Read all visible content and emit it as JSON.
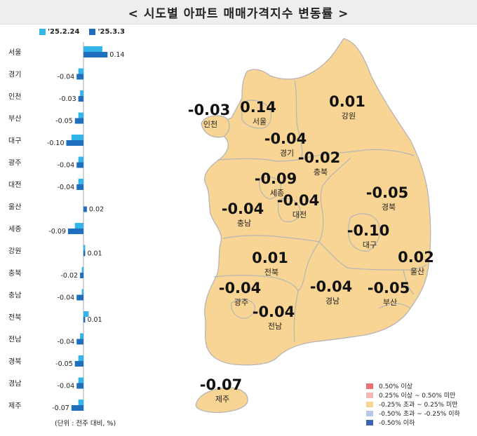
{
  "title": "< 시도별 아파트 매매가격지수 변동률 >",
  "unit_note": "(단위 : 전주 대비, %)",
  "colors": {
    "prev": "#33b5ea",
    "curr": "#1f6fbf",
    "land": "#f8d594",
    "land_stroke": "#b5b5b5"
  },
  "chart_data": {
    "type": "bar",
    "orientation": "horizontal",
    "series": [
      {
        "name": "'25.2.24",
        "values": [
          0.11,
          -0.03,
          -0.02,
          -0.03,
          -0.07,
          -0.03,
          -0.03,
          0.0,
          -0.05,
          0.01,
          -0.01,
          -0.01,
          0.03,
          -0.02,
          -0.03,
          -0.03,
          -0.03
        ]
      },
      {
        "name": "'25.3.3",
        "values": [
          0.14,
          -0.04,
          -0.03,
          -0.05,
          -0.1,
          -0.04,
          -0.04,
          0.02,
          -0.09,
          0.01,
          -0.02,
          -0.04,
          0.01,
          -0.04,
          -0.05,
          -0.04,
          -0.07
        ]
      }
    ],
    "categories": [
      "서울",
      "경기",
      "인천",
      "부산",
      "대구",
      "광주",
      "대전",
      "울산",
      "세종",
      "강원",
      "충북",
      "충남",
      "전북",
      "전남",
      "경북",
      "경남",
      "제주"
    ],
    "data_labels": [
      "0.14",
      "-0.04",
      "-0.03",
      "-0.05",
      "-0.10",
      "-0.04",
      "-0.04",
      "0.02",
      "-0.09",
      "0.01",
      "-0.02",
      "-0.04",
      "0.01",
      "-0.04",
      "-0.05",
      "-0.04",
      "-0.07"
    ]
  },
  "map": {
    "regions": [
      {
        "name": "인천",
        "value": "-0.03"
      },
      {
        "name": "서울",
        "value": "0.14"
      },
      {
        "name": "경기",
        "value": "-0.04"
      },
      {
        "name": "강원",
        "value": "0.01"
      },
      {
        "name": "충북",
        "value": "-0.02"
      },
      {
        "name": "세종",
        "value": "-0.09"
      },
      {
        "name": "대전",
        "value": "-0.04"
      },
      {
        "name": "충남",
        "value": "-0.04"
      },
      {
        "name": "경북",
        "value": "-0.05"
      },
      {
        "name": "대구",
        "value": "-0.10"
      },
      {
        "name": "울산",
        "value": "0.02"
      },
      {
        "name": "전북",
        "value": "0.01"
      },
      {
        "name": "광주",
        "value": "-0.04"
      },
      {
        "name": "전남",
        "value": "-0.04"
      },
      {
        "name": "경남",
        "value": "-0.04"
      },
      {
        "name": "부산",
        "value": "-0.05"
      },
      {
        "name": "제주",
        "value": "-0.07"
      }
    ],
    "legend": [
      {
        "label": "0.50% 이상",
        "color": "#e57373"
      },
      {
        "label": "0.25% 이상 ~ 0.50% 미만",
        "color": "#f4b7b7"
      },
      {
        "label": "-0.25% 초과 ~ 0.25% 미만",
        "color": "#f8d594"
      },
      {
        "label": "-0.50% 초과 ~ -0.25% 이하",
        "color": "#b7c7e6"
      },
      {
        "label": "-0.50% 이하",
        "color": "#3e63b4"
      }
    ]
  }
}
